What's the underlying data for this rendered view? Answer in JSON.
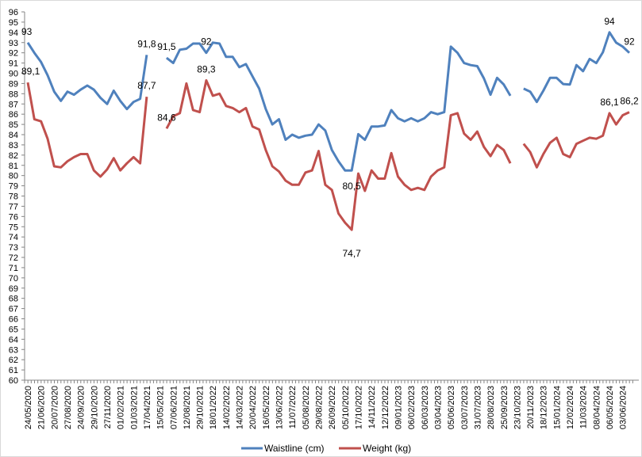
{
  "chart_data": {
    "type": "line",
    "title": "",
    "xlabel": "",
    "ylabel": "",
    "ylim": [
      60,
      96
    ],
    "ytick_step": 1,
    "grid": false,
    "legend_placement": "bottom",
    "x_tick_labels": [
      "24/05/2020",
      "21/06/2020",
      "20/07/2020",
      "27/08/2020",
      "24/09/2020",
      "29/10/2020",
      "27/11/2020",
      "01/02/2021",
      "01/03/2021",
      "17/04/2021",
      "15/05/2021",
      "07/06/2021",
      "12/08/2021",
      "29/10/2021",
      "18/01/2022",
      "14/02/2022",
      "14/03/2022",
      "20/04/2022",
      "16/05/2022",
      "13/06/2022",
      "11/07/2022",
      "05/08/2022",
      "29/08/2022",
      "26/09/2022",
      "05/10/2022",
      "17/10/2022",
      "14/11/2022",
      "12/12/2022",
      "09/01/2023",
      "06/02/2023",
      "06/03/2023",
      "03/04/2023",
      "05/06/2023",
      "03/07/2023",
      "31/07/2023",
      "28/08/2023",
      "25/09/2023",
      "23/10/2023",
      "20/11/2023",
      "18/12/2023",
      "15/01/2024",
      "12/02/2024",
      "11/03/2024",
      "08/04/2024",
      "06/05/2024",
      "03/06/2024"
    ],
    "series": [
      {
        "name": "Waistline (cm)",
        "color": "#4f81bd",
        "values": [
          93.0,
          92.0,
          91.1,
          89.8,
          88.2,
          87.3,
          88.2,
          87.9,
          88.4,
          88.8,
          88.4,
          87.6,
          87.0,
          88.3,
          87.3,
          86.5,
          87.2,
          87.5,
          91.8,
          null,
          null,
          91.5,
          91.0,
          92.3,
          92.4,
          92.9,
          92.9,
          92.0,
          93.0,
          92.9,
          91.6,
          91.6,
          90.6,
          90.9,
          89.7,
          88.5,
          86.5,
          85.0,
          85.5,
          83.5,
          84.0,
          83.7,
          83.9,
          84.0,
          85.0,
          84.4,
          82.5,
          81.4,
          80.5,
          80.5,
          84.05,
          83.5,
          84.8,
          84.8,
          84.9,
          86.4,
          85.6,
          85.3,
          85.6,
          85.3,
          85.6,
          86.2,
          86.0,
          86.2,
          92.6,
          92.0,
          91.0,
          90.8,
          90.7,
          89.5,
          87.9,
          89.55,
          88.9,
          87.8,
          null,
          88.5,
          88.2,
          87.2,
          88.3,
          89.55,
          89.55,
          88.95,
          88.9,
          90.8,
          90.2,
          91.4,
          91.0,
          92.05,
          94.0,
          93.0,
          92.6,
          92.0
        ],
        "data_labels": [
          {
            "index": 0,
            "text": "93"
          },
          {
            "index": 18,
            "text": "91,8"
          },
          {
            "index": 21,
            "text": "91,5"
          },
          {
            "index": 27,
            "text": "92"
          },
          {
            "index": 49,
            "text": "80,5"
          },
          {
            "index": 88,
            "text": "94"
          },
          {
            "index": 91,
            "text": "92"
          }
        ]
      },
      {
        "name": "Weight (kg)",
        "color": "#c0504d",
        "values": [
          89.1,
          85.5,
          85.3,
          83.6,
          80.9,
          80.8,
          81.4,
          81.8,
          82.1,
          82.1,
          80.5,
          79.9,
          80.6,
          81.7,
          80.5,
          81.2,
          81.8,
          81.2,
          87.7,
          null,
          null,
          84.6,
          85.8,
          86.1,
          89.0,
          86.4,
          86.2,
          89.3,
          87.8,
          88.0,
          86.8,
          86.6,
          86.2,
          86.6,
          84.8,
          84.5,
          82.5,
          80.9,
          80.4,
          79.5,
          79.1,
          79.1,
          80.3,
          80.5,
          82.4,
          79.1,
          78.6,
          76.3,
          75.4,
          74.7,
          80.2,
          78.5,
          80.5,
          79.7,
          79.7,
          82.2,
          79.9,
          79.1,
          78.6,
          78.8,
          78.6,
          79.9,
          80.5,
          80.8,
          85.9,
          86.1,
          84.1,
          83.5,
          84.3,
          82.8,
          81.9,
          83.0,
          82.5,
          81.2,
          null,
          83.1,
          82.3,
          80.8,
          82.1,
          83.2,
          83.7,
          82.1,
          81.8,
          83.1,
          83.4,
          83.7,
          83.6,
          83.9,
          86.1,
          85.0,
          85.9,
          86.2
        ],
        "data_labels": [
          {
            "index": 0,
            "text": "89,1"
          },
          {
            "index": 18,
            "text": "87,7"
          },
          {
            "index": 21,
            "text": "84,6"
          },
          {
            "index": 27,
            "text": "89,3"
          },
          {
            "index": 49,
            "text": "74,7"
          },
          {
            "index": 88,
            "text": "86,1"
          },
          {
            "index": 91,
            "text": "86,2"
          }
        ]
      }
    ]
  }
}
